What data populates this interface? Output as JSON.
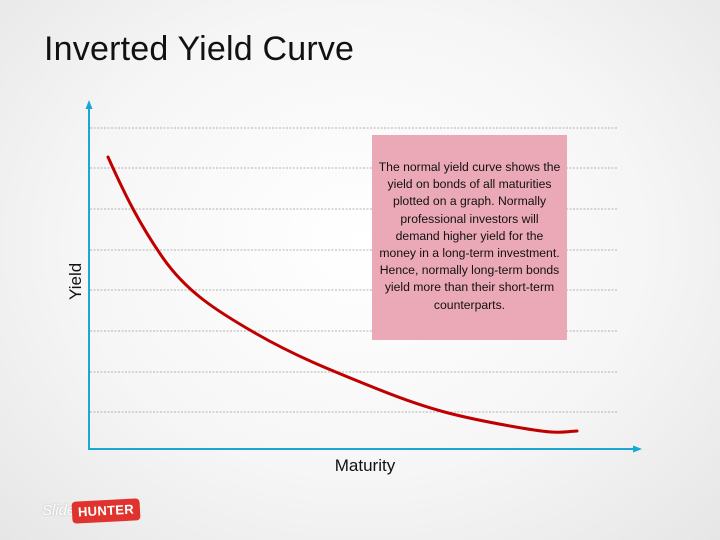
{
  "slide": {
    "title": "Inverted Yield Curve"
  },
  "chart_data": {
    "type": "line",
    "x_label": "Maturity",
    "y_label": "Yield",
    "grid": true,
    "curve": "decreasing (inverted) yield curve",
    "colors": {
      "axis": "#1aa7d6",
      "curve": "#c00000",
      "grid": "#9a9a9a"
    }
  },
  "note": {
    "text": "The normal yield curve shows the yield on bonds of all maturities plotted on a graph. Normally professional investors will demand higher yield for the money in a long-term investment. Hence, normally long-term bonds yield more than their short-term counterparts.",
    "background": "#eba8b6"
  },
  "logo": {
    "part1": "Slide",
    "part2": "HUNTER",
    "color": "#e0332d"
  }
}
